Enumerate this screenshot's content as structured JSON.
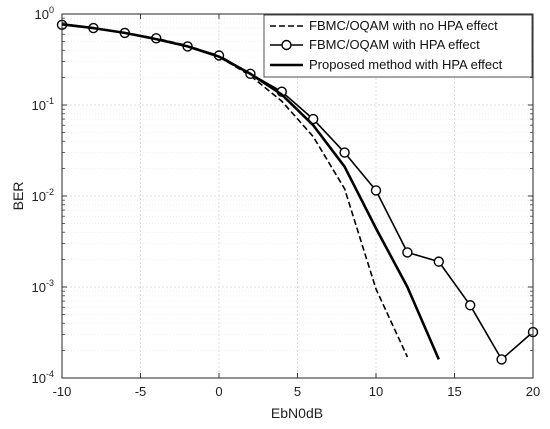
{
  "chart_data": {
    "type": "line",
    "title": "",
    "xlabel": "EbN0dB",
    "ylabel": "BER",
    "xlim": [
      -10,
      20
    ],
    "ylim": [
      0.0001,
      1
    ],
    "yscale": "log",
    "grid": true,
    "legend_position": "top-right",
    "x_ticks": [
      -10,
      -5,
      0,
      5,
      10,
      15,
      20
    ],
    "y_ticks": [
      {
        "value": 1,
        "base": "10",
        "exp": "0"
      },
      {
        "value": 0.1,
        "base": "10",
        "exp": "-1"
      },
      {
        "value": 0.01,
        "base": "10",
        "exp": "-2"
      },
      {
        "value": 0.001,
        "base": "10",
        "exp": "-3"
      },
      {
        "value": 0.0001,
        "base": "10",
        "exp": "-4"
      }
    ],
    "series": [
      {
        "name": "FBMC/OQAM with no HPA effect",
        "style": "dashed",
        "color": "#000000",
        "marker": "none",
        "x": [
          -10,
          -8,
          -6,
          -4,
          -2,
          0,
          2,
          4,
          6,
          8,
          10,
          12
        ],
        "y": [
          0.78,
          0.7,
          0.62,
          0.54,
          0.45,
          0.34,
          0.21,
          0.11,
          0.045,
          0.012,
          0.00095,
          0.00017
        ]
      },
      {
        "name": "FBMC/OQAM with HPA effect",
        "style": "solid",
        "color": "#000000",
        "marker": "circle",
        "x": [
          -10,
          -8,
          -6,
          -4,
          -2,
          0,
          2,
          4,
          6,
          8,
          10,
          12,
          14,
          16,
          18,
          20
        ],
        "y": [
          0.76,
          0.7,
          0.62,
          0.54,
          0.44,
          0.35,
          0.22,
          0.14,
          0.07,
          0.03,
          0.0115,
          0.0024,
          0.0019,
          0.00063,
          0.00016,
          0.00032
        ]
      },
      {
        "name": "Proposed method with HPA effect",
        "style": "solid-thick",
        "color": "#000000",
        "marker": "none",
        "x": [
          -10,
          -8,
          -6,
          -4,
          -2,
          0,
          2,
          4,
          6,
          8,
          10,
          12,
          14
        ],
        "y": [
          0.77,
          0.7,
          0.62,
          0.53,
          0.44,
          0.34,
          0.22,
          0.13,
          0.06,
          0.021,
          0.0044,
          0.001,
          0.00016
        ]
      }
    ]
  }
}
